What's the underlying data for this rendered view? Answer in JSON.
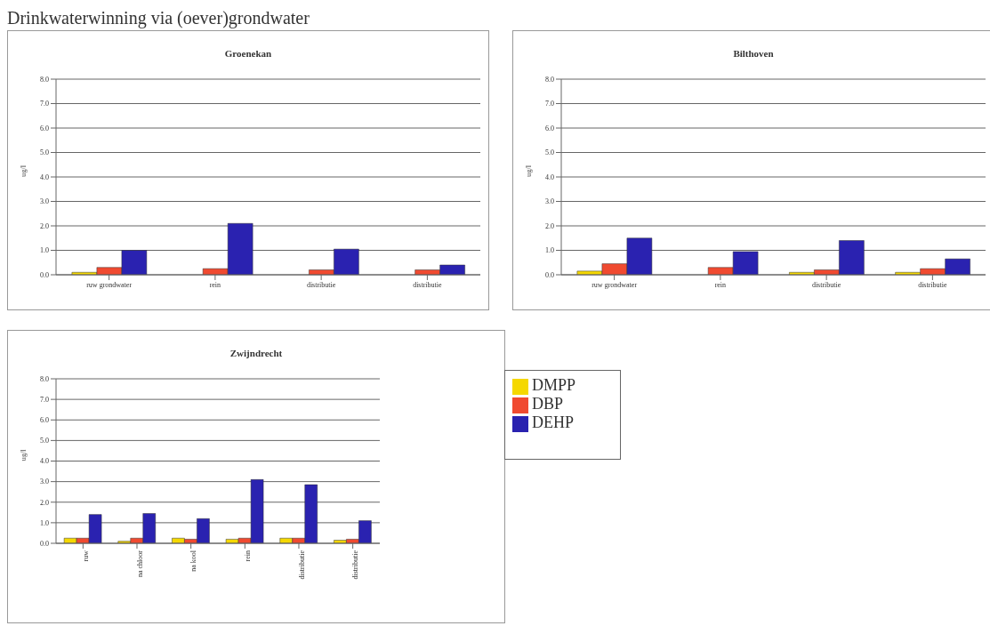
{
  "chart_data": [
    {
      "type": "bar",
      "title": "Groenekan",
      "annotations": [
        "Drinkwaterwinning via (oever)grondwater"
      ],
      "ylabel": "ug/l",
      "categories": [
        "ruw grondwater",
        "rein",
        "distributie",
        "distributie"
      ],
      "series": [
        {
          "color": "#f5d800",
          "values": [
            0.1,
            null,
            null,
            null
          ]
        },
        {
          "color": "#f04a30",
          "values": [
            0.3,
            0.25,
            0.2,
            0.2
          ]
        },
        {
          "color": "#2a22b0",
          "values": [
            1.0,
            2.1,
            1.05,
            0.4
          ]
        }
      ],
      "ylim": [
        0,
        8
      ],
      "yticks": [
        {
          "value": 0,
          "label": "0.0"
        },
        {
          "value": 1,
          "label": "1.0"
        },
        {
          "value": 2,
          "label": "2.0"
        },
        {
          "value": 3,
          "label": "3.0"
        },
        {
          "value": 4,
          "label": "4.0"
        },
        {
          "value": 5,
          "label": "5.0"
        },
        {
          "value": 6,
          "label": "6.0"
        },
        {
          "value": 7,
          "label": "7.0"
        },
        {
          "value": 8,
          "label": "8.0"
        }
      ],
      "grid": "y"
    },
    {
      "type": "bar",
      "title": "Bilthoven",
      "ylabel": "ug/l",
      "categories": [
        "ruw grondwater",
        "rein",
        "distributie",
        "distributie"
      ],
      "series": [
        {
          "color": "#f5d800",
          "values": [
            0.15,
            null,
            0.1,
            0.1
          ]
        },
        {
          "color": "#f04a30",
          "values": [
            0.45,
            0.3,
            0.2,
            0.25
          ]
        },
        {
          "color": "#2a22b0",
          "values": [
            1.5,
            0.95,
            1.4,
            0.65
          ]
        }
      ],
      "ylim": [
        0,
        8
      ],
      "yticks": [
        {
          "value": 0,
          "label": "0.0"
        },
        {
          "value": 1,
          "label": "1.0"
        },
        {
          "value": 2,
          "label": "2.0"
        },
        {
          "value": 3,
          "label": "3.0"
        },
        {
          "value": 4,
          "label": "4.0"
        },
        {
          "value": 5,
          "label": "5.0"
        },
        {
          "value": 6,
          "label": "6.0"
        },
        {
          "value": 7,
          "label": "7.0"
        },
        {
          "value": 8,
          "label": "8.0"
        }
      ],
      "grid": "y"
    },
    {
      "type": "bar",
      "title": "Zwijndrecht",
      "ylabel": "ug/l",
      "categories": [
        "ruw",
        "na chloor",
        "na kool",
        "rein",
        "distributie",
        "distributie"
      ],
      "series": [
        {
          "name": "DMPP",
          "color": "#f5d800",
          "values": [
            0.25,
            0.1,
            0.25,
            0.2,
            0.25,
            0.15
          ]
        },
        {
          "name": "DBP",
          "color": "#f04a30",
          "values": [
            0.25,
            0.25,
            0.2,
            0.25,
            0.25,
            0.2
          ]
        },
        {
          "name": "DEHP",
          "color": "#2a22b0",
          "values": [
            1.4,
            1.45,
            1.2,
            3.1,
            2.85,
            1.1
          ]
        }
      ],
      "ylim": [
        0,
        8
      ],
      "yticks": [
        {
          "value": 0,
          "label": "0.0"
        },
        {
          "value": 1,
          "label": "1.0"
        },
        {
          "value": 2,
          "label": "2.0"
        },
        {
          "value": 3,
          "label": "3.0"
        },
        {
          "value": 4,
          "label": "4.0"
        },
        {
          "value": 5,
          "label": "5.0"
        },
        {
          "value": 6,
          "label": "6.0"
        },
        {
          "value": 7,
          "label": "7.0"
        },
        {
          "value": 8,
          "label": "8.0"
        }
      ],
      "grid": "y",
      "legend": "right"
    }
  ]
}
